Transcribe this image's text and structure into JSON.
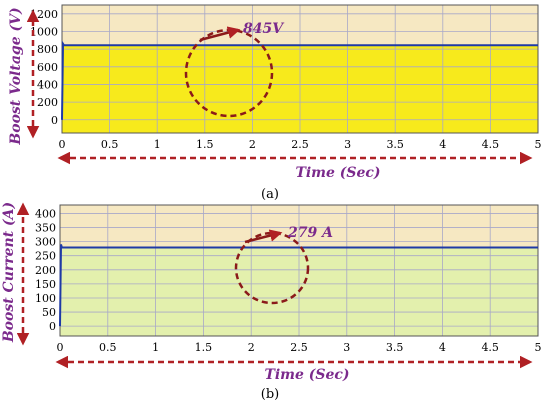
{
  "figure": {
    "colors": {
      "above_fill": "#f6e8c2",
      "label_purple": "#7b2a8c",
      "arrow_red": "#b02024",
      "grid": "#a8a8c8",
      "line": "#1f3aa6"
    }
  },
  "chart_data": [
    {
      "type": "area",
      "panel_label": "(a)",
      "ylabel": "Boost Voltage (V)",
      "xlabel": "Time (Sec)",
      "x": [
        0,
        0.01,
        0.02,
        5
      ],
      "y": [
        0,
        860,
        845,
        845
      ],
      "xlim": [
        0,
        5
      ],
      "ylim": [
        -150,
        1300
      ],
      "x_ticks": [
        "0",
        "0.5",
        "1",
        "1.5",
        "2",
        "2.5",
        "3",
        "3.5",
        "4",
        "4.5",
        "5"
      ],
      "y_ticks": [
        "0",
        "200",
        "400",
        "600",
        "800",
        "1000",
        "1200"
      ],
      "annotation": "845V",
      "grid": true,
      "fill_color": "#f7ea1c"
    },
    {
      "type": "area",
      "panel_label": "(b)",
      "ylabel": "Boost Current (A)",
      "xlabel": "Time (Sec)",
      "x": [
        0,
        0.01,
        0.02,
        5
      ],
      "y": [
        0,
        290,
        279,
        279
      ],
      "xlim": [
        0,
        5
      ],
      "ylim": [
        -35,
        430
      ],
      "x_ticks": [
        "0",
        "0.5",
        "1",
        "1.5",
        "2",
        "2.5",
        "3",
        "3.5",
        "4",
        "4.5",
        "5"
      ],
      "y_ticks": [
        "0",
        "50",
        "100",
        "150",
        "200",
        "250",
        "300",
        "350",
        "400"
      ],
      "annotation": "279 A",
      "grid": true,
      "fill_color": "#e3f0ad"
    }
  ]
}
